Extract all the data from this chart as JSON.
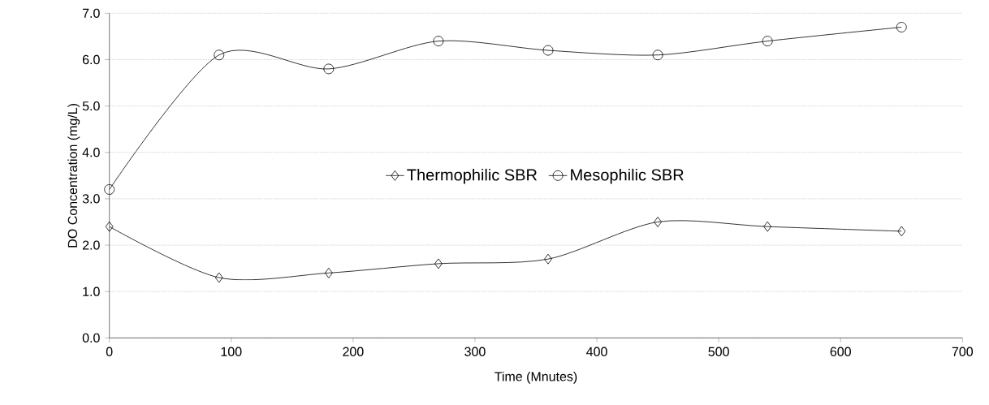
{
  "chart_data": {
    "type": "line",
    "xlabel": "Time (Mnutes)",
    "ylabel": "DO Concentration (mg/L)",
    "x": [
      0,
      90,
      180,
      270,
      360,
      450,
      540,
      650
    ],
    "series": [
      {
        "name": "Thermophilic SBR",
        "color": "#000000",
        "marker": "diamond",
        "values": [
          2.4,
          1.3,
          1.4,
          1.6,
          1.7,
          2.5,
          2.4,
          2.3
        ]
      },
      {
        "name": "Mesophilic SBR",
        "color": "#000000",
        "marker": "circle",
        "values": [
          3.2,
          6.1,
          5.8,
          6.4,
          6.2,
          6.1,
          6.4,
          6.7
        ]
      }
    ],
    "xlim": [
      0,
      700
    ],
    "xticks": [
      0,
      100,
      200,
      300,
      400,
      500,
      600,
      700
    ],
    "ylim": [
      0,
      7
    ],
    "yticks": [
      {
        "value": 0,
        "label": "0.0"
      },
      {
        "value": 1,
        "label": "1.0"
      },
      {
        "value": 2,
        "label": "2.0"
      },
      {
        "value": 3,
        "label": "3.0"
      },
      {
        "value": 4,
        "label": "4.0"
      },
      {
        "value": 5,
        "label": "5.0"
      },
      {
        "value": 6,
        "label": "6.0"
      },
      {
        "value": 7,
        "label": "7.0"
      }
    ],
    "grid": "y",
    "legend": "center",
    "line_style": "solid"
  }
}
